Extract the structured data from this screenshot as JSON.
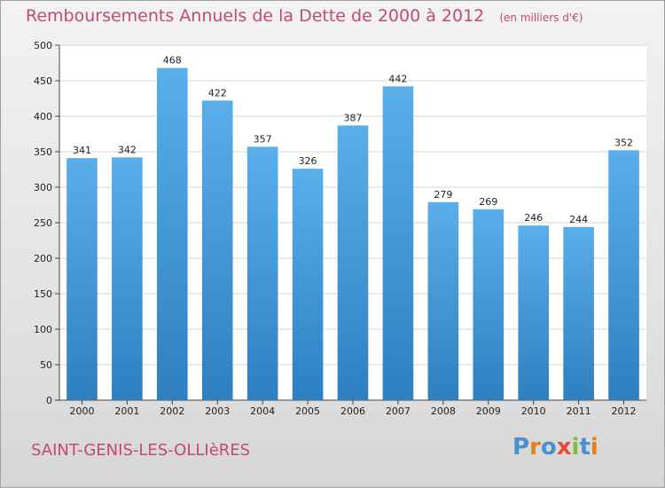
{
  "header": {
    "title": "Remboursements Annuels de la Dette de 2000 à 2012",
    "unit": "(en milliers d'€)"
  },
  "footer": {
    "city": "SAINT-GENIS-LES-OLLIèRES",
    "logo": "Proxiti"
  },
  "colors": {
    "accent": "#c2497a",
    "bar_top": "#5aaeea",
    "bar_bottom": "#2e7fc0",
    "logo_letters": [
      "#4a8fd0",
      "#e67e22",
      "#4a8fd0",
      "#e74c3c",
      "#7cbf3f",
      "#4a8fd0",
      "#e67e22"
    ]
  },
  "chart_data": {
    "type": "bar",
    "title": "Remboursements Annuels de la Dette de 2000 à 2012",
    "xlabel": "",
    "ylabel": "",
    "ylim": [
      0,
      500
    ],
    "yticks": [
      0,
      50,
      100,
      150,
      200,
      250,
      300,
      350,
      400,
      450,
      500
    ],
    "grid": true,
    "categories": [
      "2000",
      "2001",
      "2002",
      "2003",
      "2004",
      "2005",
      "2006",
      "2007",
      "2008",
      "2009",
      "2010",
      "2011",
      "2012"
    ],
    "values": [
      341,
      342,
      468,
      422,
      357,
      326,
      387,
      442,
      279,
      269,
      246,
      244,
      352
    ]
  }
}
